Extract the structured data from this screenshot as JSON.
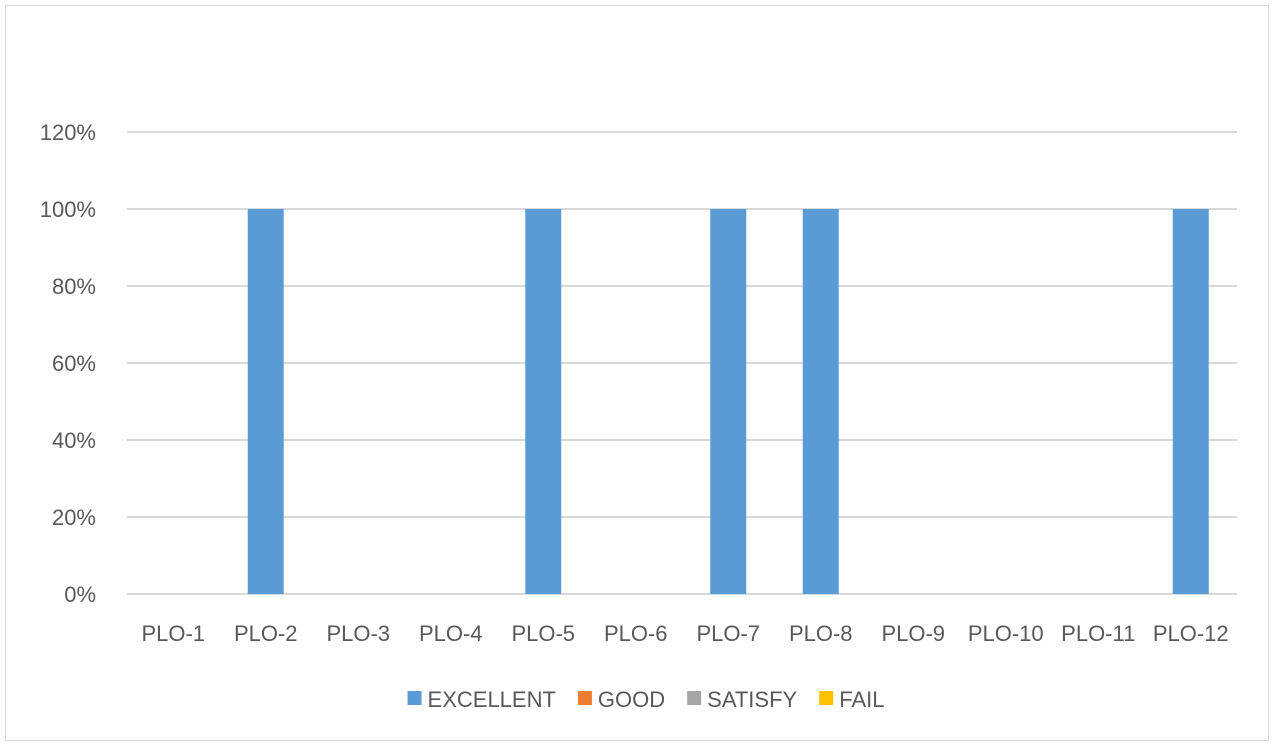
{
  "chart_data": {
    "type": "bar",
    "title": "",
    "xlabel": "",
    "ylabel": "",
    "categories": [
      "PLO-1",
      "PLO-2",
      "PLO-3",
      "PLO-4",
      "PLO-5",
      "PLO-6",
      "PLO-7",
      "PLO-8",
      "PLO-9",
      "PLO-10",
      "PLO-11",
      "PLO-12"
    ],
    "ylim": [
      0,
      1.2
    ],
    "yticks": [
      0,
      0.2,
      0.4,
      0.6,
      0.8,
      1.0,
      1.2
    ],
    "ytick_labels": [
      "0%",
      "20%",
      "40%",
      "60%",
      "80%",
      "100%",
      "120%"
    ],
    "grid": true,
    "legend_position": "bottom",
    "series": [
      {
        "name": "EXCELLENT",
        "color": "#5b9bd5",
        "values": [
          0,
          1,
          0,
          0,
          1,
          0,
          1,
          1,
          0,
          0,
          0,
          1
        ]
      },
      {
        "name": "GOOD",
        "color": "#ed7d31",
        "values": [
          0,
          0,
          0,
          0,
          0,
          0,
          0,
          0,
          0,
          0,
          0,
          0
        ]
      },
      {
        "name": "SATISFY",
        "color": "#a5a5a5",
        "values": [
          0,
          0,
          0,
          0,
          0,
          0,
          0,
          0,
          0,
          0,
          0,
          0
        ]
      },
      {
        "name": "FAIL",
        "color": "#ffc000",
        "values": [
          0,
          0,
          0,
          0,
          0,
          0,
          0,
          0,
          0,
          0,
          0,
          0
        ]
      }
    ]
  }
}
